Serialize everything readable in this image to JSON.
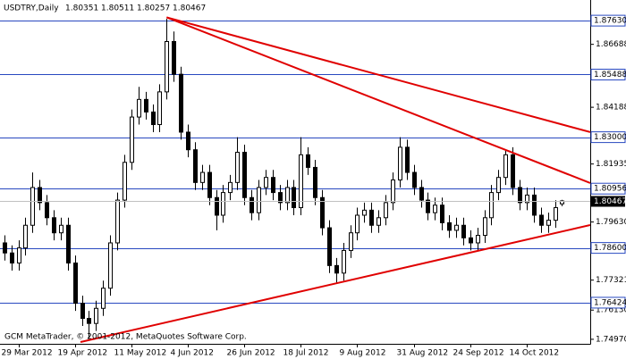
{
  "chart_data": {
    "type": "candlestick",
    "title": "USDTRY,Daily",
    "watermark": "GCM MetaTrader, © 2001-2012, MetaQuotes Software Corp.",
    "categories": [
      null,
      null,
      "29 Mar 2012",
      null,
      null,
      null,
      null,
      null,
      null,
      null,
      "19 Apr 2012",
      null,
      null,
      null,
      null,
      null,
      null,
      null,
      "11 May 2012",
      null,
      null,
      null,
      null,
      null,
      null,
      null,
      "4 Jun 2012",
      null,
      null,
      null,
      null,
      null,
      null,
      null,
      "26 Jun 2012",
      null,
      null,
      null,
      null,
      null,
      null,
      null,
      "18 Jul 2012",
      null,
      null,
      null,
      null,
      null,
      null,
      null,
      "9 Aug 2012",
      null,
      null,
      null,
      null,
      null,
      null,
      null,
      "31 Aug 2012",
      null,
      null,
      null,
      null,
      null,
      null,
      null,
      "24 Sep 2012",
      null,
      null,
      null,
      null,
      null,
      null,
      null,
      "14 Oct 2012",
      null,
      null,
      null,
      null,
      null
    ],
    "open": [
      1.788,
      1.784,
      1.78,
      1.786,
      1.795,
      1.81,
      1.804,
      1.798,
      1.792,
      1.795,
      1.78,
      1.764,
      1.758,
      1.756,
      1.762,
      1.77,
      1.788,
      1.805,
      1.82,
      1.838,
      1.845,
      1.84,
      1.835,
      1.848,
      1.868,
      1.855,
      1.832,
      1.825,
      1.812,
      1.816,
      1.806,
      1.799,
      1.808,
      1.812,
      1.824,
      1.806,
      1.8,
      1.81,
      1.814,
      1.808,
      1.804,
      1.81,
      1.802,
      1.823,
      1.818,
      1.806,
      1.794,
      1.779,
      1.776,
      1.785,
      1.792,
      1.799,
      1.801,
      1.795,
      1.798,
      1.804,
      1.813,
      1.826,
      1.816,
      1.81,
      1.805,
      1.8,
      1.803,
      1.796,
      1.793,
      1.795,
      1.79,
      1.788,
      1.791,
      1.798,
      1.808,
      1.814,
      1.823,
      1.81,
      1.804,
      1.807,
      1.799,
      1.795,
      1.797,
      1.80351
    ],
    "high": [
      1.791,
      1.787,
      1.789,
      1.798,
      1.816,
      1.813,
      1.807,
      1.801,
      1.798,
      1.798,
      1.783,
      1.767,
      1.761,
      1.765,
      1.773,
      1.791,
      1.808,
      1.823,
      1.841,
      1.85,
      1.848,
      1.843,
      1.851,
      1.877,
      1.872,
      1.858,
      1.835,
      1.828,
      1.819,
      1.819,
      1.809,
      1.811,
      1.815,
      1.83,
      1.827,
      1.809,
      1.813,
      1.817,
      1.817,
      1.811,
      1.813,
      1.813,
      1.83,
      1.826,
      1.821,
      1.809,
      1.797,
      1.782,
      1.788,
      1.795,
      1.802,
      1.804,
      1.804,
      1.801,
      1.807,
      1.816,
      1.83,
      1.829,
      1.819,
      1.813,
      1.808,
      1.806,
      1.806,
      1.799,
      1.798,
      1.798,
      1.793,
      1.794,
      1.801,
      1.811,
      1.817,
      1.825,
      1.826,
      1.813,
      1.81,
      1.81,
      1.802,
      1.8,
      1.805,
      1.80511
    ],
    "low": [
      1.781,
      1.777,
      1.777,
      1.783,
      1.792,
      1.801,
      1.795,
      1.789,
      1.789,
      1.777,
      1.761,
      1.755,
      1.75,
      1.753,
      1.759,
      1.767,
      1.785,
      1.802,
      1.817,
      1.835,
      1.837,
      1.832,
      1.832,
      1.845,
      1.852,
      1.829,
      1.822,
      1.809,
      1.809,
      1.803,
      1.793,
      1.796,
      1.805,
      1.809,
      1.803,
      1.797,
      1.797,
      1.807,
      1.805,
      1.801,
      1.801,
      1.799,
      1.799,
      1.815,
      1.803,
      1.791,
      1.776,
      1.772,
      1.773,
      1.782,
      1.789,
      1.796,
      1.792,
      1.792,
      1.795,
      1.801,
      1.81,
      1.813,
      1.807,
      1.802,
      1.797,
      1.797,
      1.793,
      1.79,
      1.79,
      1.787,
      1.785,
      1.785,
      1.788,
      1.795,
      1.805,
      1.811,
      1.807,
      1.801,
      1.801,
      1.796,
      1.792,
      1.792,
      1.794,
      1.80257
    ],
    "close": [
      1.784,
      1.78,
      1.786,
      1.795,
      1.81,
      1.804,
      1.798,
      1.792,
      1.795,
      1.78,
      1.764,
      1.758,
      1.756,
      1.762,
      1.77,
      1.788,
      1.805,
      1.82,
      1.838,
      1.845,
      1.84,
      1.835,
      1.848,
      1.868,
      1.855,
      1.832,
      1.825,
      1.812,
      1.816,
      1.806,
      1.799,
      1.808,
      1.812,
      1.824,
      1.806,
      1.8,
      1.81,
      1.814,
      1.808,
      1.804,
      1.81,
      1.802,
      1.823,
      1.818,
      1.806,
      1.794,
      1.779,
      1.776,
      1.785,
      1.792,
      1.799,
      1.801,
      1.795,
      1.798,
      1.804,
      1.813,
      1.826,
      1.816,
      1.81,
      1.805,
      1.8,
      1.803,
      1.796,
      1.793,
      1.795,
      1.79,
      1.788,
      1.791,
      1.798,
      1.808,
      1.814,
      1.823,
      1.81,
      1.804,
      1.807,
      1.799,
      1.795,
      1.797,
      1.802,
      1.80467
    ],
    "xlim": [
      -0.6,
      83
    ],
    "ylim": [
      1.7479,
      1.8845
    ],
    "yticks": [
      {
        "value": 1.86688,
        "label": "1.86688"
      },
      {
        "value": 1.84188,
        "label": "1.84188"
      },
      {
        "value": 1.81935,
        "label": "1.81935"
      },
      {
        "value": 1.7963,
        "label": "1.79630"
      },
      {
        "value": 1.77321,
        "label": "1.77321"
      },
      {
        "value": 1.7613,
        "label": "1.76130"
      },
      {
        "value": 1.7497,
        "label": "1.74970"
      }
    ],
    "levels": [
      {
        "value": 1.8763,
        "label": "1.87630"
      },
      {
        "value": 1.85488,
        "label": "1.85488"
      },
      {
        "value": 1.83,
        "label": "1.83000"
      },
      {
        "value": 1.80956,
        "label": "1.80956"
      },
      {
        "value": 1.786,
        "label": "1.78600"
      },
      {
        "value": 1.76424,
        "label": "1.76424"
      }
    ],
    "trendlines": [
      {
        "x": [
          23,
          83
        ],
        "y": [
          1.8776,
          1.8118
        ]
      },
      {
        "x": [
          23,
          83
        ],
        "y": [
          1.8776,
          1.832
        ]
      },
      {
        "x": [
          10.8,
          83
        ],
        "y": [
          1.7486,
          1.7951
        ]
      }
    ],
    "level_color": "#2848c0",
    "trendline_color": "#e00000",
    "bull_color": "#ffffff",
    "bear_color": "#000000"
  }
}
